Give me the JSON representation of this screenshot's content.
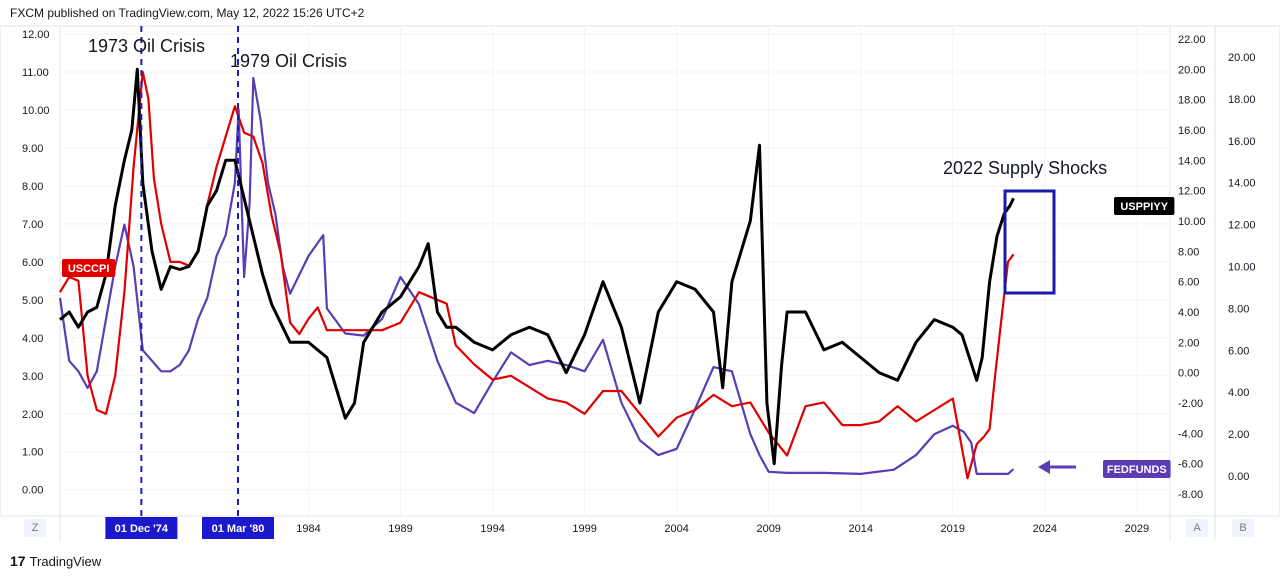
{
  "header": {
    "text": "FXCM published on TradingView.com, May 12, 2022 15:26 UTC+2"
  },
  "footer": {
    "brand": "TradingView",
    "brand_mark": "17"
  },
  "controls": {
    "left_btn": "Z",
    "right_btn_1": "A",
    "right_btn_2": "B"
  },
  "colors": {
    "usccpi": "#e00000",
    "usppiyy": "#000000",
    "fedfunds": "#5b3cb5",
    "vline": "#1e1eb4",
    "box": "#1a1aaa",
    "axis_badge": "#1a1acc"
  },
  "chart_data": {
    "type": "line",
    "title": "",
    "x_axis": {
      "ticks": [
        "1984",
        "1989",
        "1994",
        "1999",
        "2004",
        "2009",
        "2014",
        "2019",
        "2024",
        "2029"
      ],
      "range": [
        1970.5,
        2030.8
      ]
    },
    "y_axis_left": {
      "ticks": [
        "12.00",
        "11.00",
        "10.00",
        "9.00",
        "8.00",
        "7.00",
        "6.00",
        "5.00",
        "4.00",
        "3.00",
        "2.00",
        "1.00",
        "0.00"
      ],
      "range": [
        -0.35,
        12.0
      ]
    },
    "y_axis_right_1": {
      "ticks": [
        "22.00",
        "20.00",
        "18.00",
        "16.00",
        "14.00",
        "12.00",
        "10.00",
        "8.00",
        "6.00",
        "4.00",
        "2.00",
        "0.00",
        "-2.00",
        "-4.00",
        "-6.00",
        "-8.00"
      ],
      "range": [
        -8.0,
        22.0
      ]
    },
    "y_axis_right_2": {
      "ticks": [
        "20.00",
        "18.00",
        "16.00",
        "14.00",
        "12.00",
        "10.00",
        "8.00",
        "6.00",
        "4.00",
        "2.00",
        "0.00"
      ],
      "range": [
        0.0,
        20.0
      ]
    },
    "annotations": [
      {
        "text": "1973 Oil Crisis"
      },
      {
        "text": "1979 Oil Crisis"
      },
      {
        "text": "2022 Supply Shocks"
      }
    ],
    "vertical_markers": [
      {
        "label": "01 Dec '74",
        "x": 1974.92
      },
      {
        "label": "01 Mar '80",
        "x": 1980.17
      }
    ],
    "series": [
      {
        "name": "USCCPI",
        "axis": "left",
        "color": "#e00000",
        "x": [
          1970.5,
          1971.0,
          1971.5,
          1972.0,
          1972.5,
          1973.0,
          1973.5,
          1974.0,
          1974.5,
          1975.0,
          1975.3,
          1975.6,
          1976.0,
          1976.5,
          1977.0,
          1977.5,
          1978.0,
          1978.5,
          1979.0,
          1979.5,
          1980.0,
          1980.5,
          1981.0,
          1981.5,
          1982.0,
          1982.5,
          1983.0,
          1983.5,
          1984.0,
          1984.5,
          1985.0,
          1986.0,
          1987.0,
          1988.0,
          1989.0,
          1990.0,
          1991.0,
          1991.5,
          1992.0,
          1993.0,
          1994.0,
          1995.0,
          1996.0,
          1997.0,
          1998.0,
          1999.0,
          2000.0,
          2001.0,
          2002.0,
          2003.0,
          2004.0,
          2005.0,
          2006.0,
          2007.0,
          2008.0,
          2009.0,
          2010.0,
          2011.0,
          2012.0,
          2013.0,
          2014.0,
          2015.0,
          2016.0,
          2017.0,
          2018.0,
          2019.0,
          2019.8,
          2020.3,
          2020.7,
          2021.0,
          2021.3,
          2021.6,
          2022.0,
          2022.3
        ],
        "y": [
          5.2,
          5.6,
          5.5,
          3.0,
          2.1,
          2.0,
          3.0,
          5.2,
          8.5,
          11.0,
          10.3,
          8.2,
          7.0,
          6.0,
          6.0,
          5.9,
          6.3,
          7.5,
          8.5,
          9.3,
          10.1,
          9.4,
          9.3,
          8.6,
          7.2,
          6.2,
          4.4,
          4.1,
          4.5,
          4.8,
          4.2,
          4.2,
          4.2,
          4.2,
          4.4,
          5.2,
          5.0,
          4.9,
          3.8,
          3.3,
          2.9,
          3.0,
          2.7,
          2.4,
          2.3,
          2.0,
          2.6,
          2.6,
          2.0,
          1.4,
          1.9,
          2.1,
          2.5,
          2.2,
          2.3,
          1.5,
          0.9,
          2.2,
          2.3,
          1.7,
          1.7,
          1.8,
          2.2,
          1.8,
          2.1,
          2.4,
          0.3,
          1.2,
          1.4,
          1.6,
          3.0,
          4.3,
          6.0,
          6.2
        ]
      },
      {
        "name": "USPPIYY",
        "axis": "right_1",
        "color": "#000000",
        "x": [
          1970.5,
          1971.0,
          1971.5,
          1972.0,
          1972.5,
          1973.0,
          1973.5,
          1974.0,
          1974.4,
          1974.7,
          1975.0,
          1975.5,
          1976.0,
          1976.5,
          1977.0,
          1977.5,
          1978.0,
          1978.5,
          1979.0,
          1979.5,
          1980.0,
          1980.5,
          1981.0,
          1981.5,
          1982.0,
          1983.0,
          1984.0,
          1985.0,
          1986.0,
          1986.5,
          1987.0,
          1988.0,
          1989.0,
          1990.0,
          1990.5,
          1991.0,
          1991.5,
          1992.0,
          1993.0,
          1994.0,
          1995.0,
          1996.0,
          1997.0,
          1998.0,
          1999.0,
          2000.0,
          2001.0,
          2002.0,
          2003.0,
          2004.0,
          2005.0,
          2006.0,
          2006.5,
          2007.0,
          2007.5,
          2008.0,
          2008.5,
          2008.9,
          2009.3,
          2009.7,
          2010.0,
          2011.0,
          2012.0,
          2013.0,
          2014.0,
          2015.0,
          2016.0,
          2017.0,
          2018.0,
          2019.0,
          2019.5,
          2020.3,
          2020.6,
          2021.0,
          2021.4,
          2021.8,
          2022.1,
          2022.3
        ],
        "y": [
          3.5,
          4.0,
          3.0,
          4.0,
          4.3,
          6.5,
          11.0,
          14.0,
          16.0,
          20.0,
          12.5,
          8.0,
          5.5,
          7.0,
          6.8,
          7.0,
          8.0,
          11.0,
          12.0,
          14.0,
          14.0,
          11.5,
          9.0,
          6.5,
          4.5,
          2.0,
          2.0,
          1.0,
          -3.0,
          -2.0,
          2.0,
          4.0,
          5.0,
          7.0,
          8.5,
          4.0,
          3.0,
          3.0,
          2.0,
          1.5,
          2.5,
          3.0,
          2.5,
          0.0,
          2.5,
          6.0,
          3.0,
          -2.0,
          4.0,
          6.0,
          5.5,
          4.0,
          -1.0,
          6.0,
          8.0,
          10.0,
          15.0,
          -2.0,
          -6.0,
          0.5,
          4.0,
          4.0,
          1.5,
          2.0,
          1.0,
          0.0,
          -0.5,
          2.0,
          3.5,
          3.0,
          2.5,
          -0.5,
          1.0,
          6.0,
          9.0,
          10.5,
          11.0,
          11.5
        ]
      },
      {
        "name": "FEDFUNDS",
        "axis": "right_2",
        "color": "#5b3cb5",
        "x": [
          1970.5,
          1971.0,
          1971.5,
          1972.0,
          1972.5,
          1973.0,
          1973.5,
          1974.0,
          1974.5,
          1975.0,
          1975.5,
          1976.0,
          1976.5,
          1977.0,
          1977.5,
          1978.0,
          1978.5,
          1979.0,
          1979.5,
          1980.0,
          1980.2,
          1980.5,
          1980.8,
          1981.0,
          1981.4,
          1981.8,
          1982.2,
          1982.6,
          1983.0,
          1984.0,
          1984.8,
          1985.0,
          1986.0,
          1987.0,
          1988.0,
          1989.0,
          1990.0,
          1991.0,
          1992.0,
          1993.0,
          1994.0,
          1995.0,
          1996.0,
          1997.0,
          1998.0,
          1999.0,
          2000.0,
          2001.0,
          2002.0,
          2003.0,
          2004.0,
          2005.0,
          2006.0,
          2007.0,
          2008.0,
          2008.5,
          2009.0,
          2010.0,
          2012.0,
          2014.0,
          2015.8,
          2017.0,
          2018.0,
          2019.0,
          2019.6,
          2020.0,
          2020.3,
          2021.0,
          2022.0,
          2022.3
        ],
        "y": [
          8.5,
          5.5,
          5.0,
          4.2,
          5.0,
          7.5,
          10.0,
          12.0,
          10.0,
          6.0,
          5.5,
          5.0,
          5.0,
          5.3,
          6.0,
          7.5,
          8.5,
          10.5,
          11.5,
          14.0,
          17.5,
          9.5,
          13.0,
          19.0,
          17.0,
          14.0,
          12.5,
          10.0,
          8.7,
          10.5,
          11.5,
          8.0,
          6.8,
          6.7,
          7.5,
          9.5,
          8.2,
          5.5,
          3.5,
          3.0,
          4.5,
          5.9,
          5.3,
          5.5,
          5.3,
          5.0,
          6.5,
          3.5,
          1.7,
          1.0,
          1.3,
          3.2,
          5.2,
          5.0,
          2.0,
          1.0,
          0.2,
          0.15,
          0.15,
          0.1,
          0.3,
          1.0,
          2.0,
          2.4,
          2.1,
          1.6,
          0.1,
          0.1,
          0.1,
          0.33
        ]
      }
    ],
    "legend_badges": [
      {
        "label": "USCCPI",
        "color": "#e00000"
      },
      {
        "label": "USPPIYY",
        "color": "#000000"
      },
      {
        "label": "FEDFUNDS",
        "color": "#5b3cb5"
      }
    ],
    "grid": true
  }
}
